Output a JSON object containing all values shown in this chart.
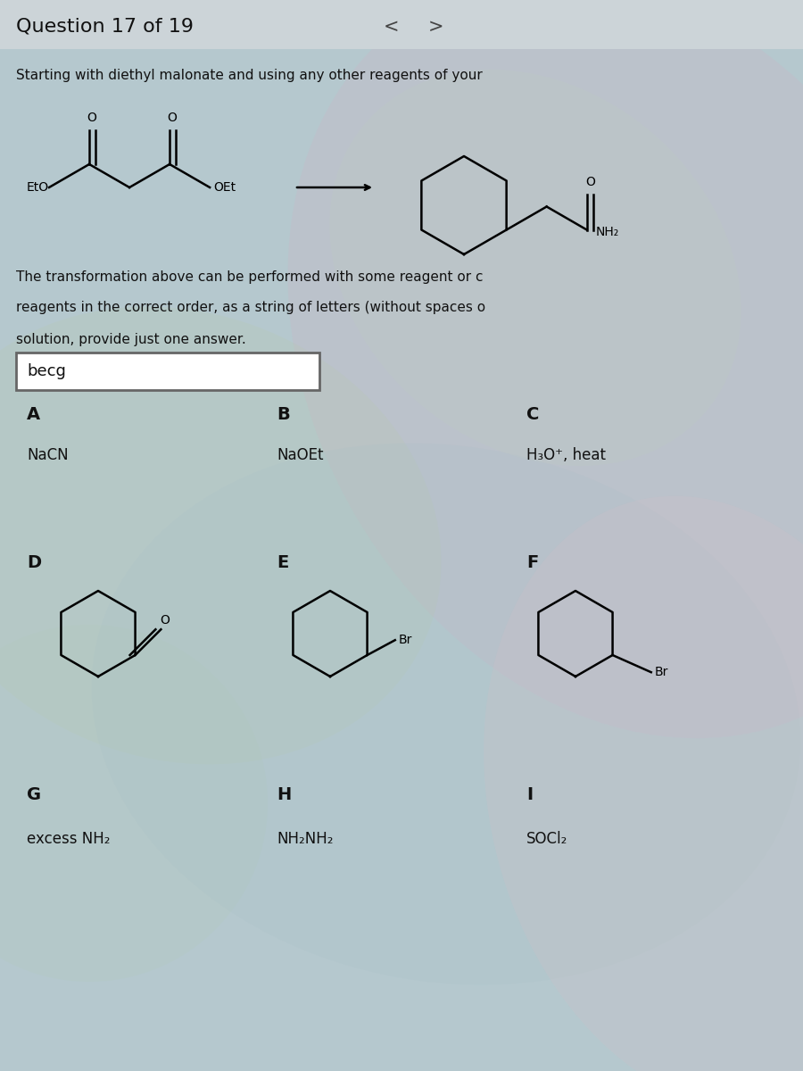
{
  "title": "Question 17 of 19",
  "nav_left": "<",
  "nav_right": ">",
  "question_line1": "Starting with diethyl malonate and using any other reagents of your",
  "reaction_line1": "The transformation above can be performed with some reagent or c",
  "reaction_line2": "reagents in the correct order, as a string of letters (without spaces o",
  "reaction_line3": "solution, provide just one answer.",
  "answer": "becg",
  "label_A": "A",
  "text_A": "NaCN",
  "label_B": "B",
  "text_B": "NaOEt",
  "label_C": "C",
  "text_C": "H₃O⁺, heat",
  "label_D": "D",
  "label_E": "E",
  "label_F": "F",
  "label_G": "G",
  "text_G": "excess NH₂",
  "label_H": "H",
  "text_H": "NH₂NH₂",
  "label_I": "I",
  "text_I": "SOCl₂",
  "bg_color": "#b8c8cc",
  "title_bar_color": "#ccd4d8",
  "text_color": "#111111"
}
